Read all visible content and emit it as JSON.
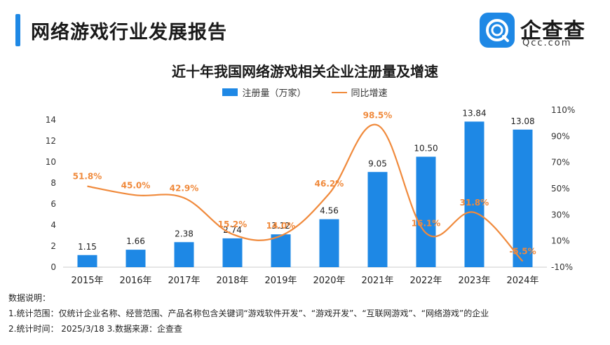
{
  "header": {
    "title": "网络游戏行业发展报告",
    "brand_name": "企查查",
    "brand_sub": "Qcc.com",
    "brand_color": "#1e88e5"
  },
  "notes": {
    "heading": "数据说明：",
    "line1": "1.统计范围：仅统计企业名称、经营范围、产品名称包含关键词“游戏软件开发”、“游戏开发”、“互联网游戏”、“网络游戏”的企业",
    "line2": "2.统计时间： 2025/3/18     3.数据来源：企查查"
  },
  "chart_data": {
    "type": "bar",
    "title": "近十年我国网络游戏相关企业注册量及增速",
    "categories": [
      "2015年",
      "2016年",
      "2017年",
      "2018年",
      "2019年",
      "2020年",
      "2021年",
      "2022年",
      "2023年",
      "2024年"
    ],
    "series": [
      {
        "name": "注册量（万家）",
        "type": "bar",
        "axis": "left",
        "color": "#1e88e5",
        "values": [
          1.15,
          1.66,
          2.38,
          2.74,
          3.12,
          4.56,
          9.05,
          10.5,
          13.84,
          13.08
        ],
        "labels": [
          "1.15",
          "1.66",
          "2.38",
          "2.74",
          "3.12",
          "4.56",
          "9.05",
          "10.50",
          "13.84",
          "13.08"
        ]
      },
      {
        "name": "同比增速",
        "type": "line",
        "axis": "right",
        "color": "#f08a3c",
        "values": [
          51.8,
          45.0,
          42.9,
          15.2,
          14.0,
          46.2,
          98.5,
          16.1,
          31.8,
          -5.5
        ],
        "labels": [
          "51.8%",
          "45.0%",
          "42.9%",
          "15.2%",
          "14.0%",
          "46.2%",
          "98.5%",
          "16.1%",
          "31.8%",
          "-5.5%"
        ]
      }
    ],
    "y_left": {
      "min": 0,
      "max": 14,
      "ticks": [
        "0",
        "2",
        "4",
        "6",
        "8",
        "10",
        "12",
        "14"
      ]
    },
    "y_right": {
      "min": -10,
      "max": 110,
      "ticks": [
        "-10%",
        "10%",
        "30%",
        "50%",
        "70%",
        "90%",
        "110%"
      ]
    },
    "grid": false,
    "legend_position": "top-center"
  }
}
